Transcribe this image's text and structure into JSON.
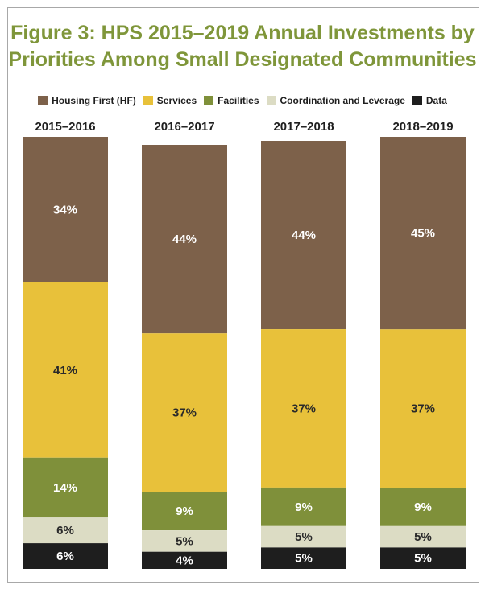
{
  "chart_data": {
    "type": "bar",
    "stacked": true,
    "normalized_percent": true,
    "title": "Figure 3: HPS 2015–2019 Annual Investments by Priorities Among Small Designated Communities",
    "title_lines": [
      "Figure 3: HPS 2015–2019 Annual Investments by",
      "Priorities Among Small Designated Communities"
    ],
    "categories": [
      "2015–2016",
      "2016–2017",
      "2017–2018",
      "2018–2019"
    ],
    "series": [
      {
        "name": "Housing First (HF)",
        "color": "#7d614a",
        "label_color": "#ffffff",
        "values": [
          34,
          44,
          44,
          45
        ]
      },
      {
        "name": "Services",
        "color": "#e8c13a",
        "label_color": "#2a2a2a",
        "values": [
          41,
          37,
          37,
          37
        ]
      },
      {
        "name": "Facilities",
        "color": "#7f903a",
        "label_color": "#ffffff",
        "values": [
          14,
          9,
          9,
          9
        ]
      },
      {
        "name": "Coordination and Leverage",
        "color": "#dcdcc4",
        "label_color": "#2a2a2a",
        "values": [
          6,
          5,
          5,
          5
        ]
      },
      {
        "name": "Data",
        "color": "#1e1e1e",
        "label_color": "#ffffff",
        "values": [
          6,
          4,
          5,
          5
        ]
      }
    ],
    "legend_position": "top",
    "value_suffix": "%",
    "grid": false
  }
}
